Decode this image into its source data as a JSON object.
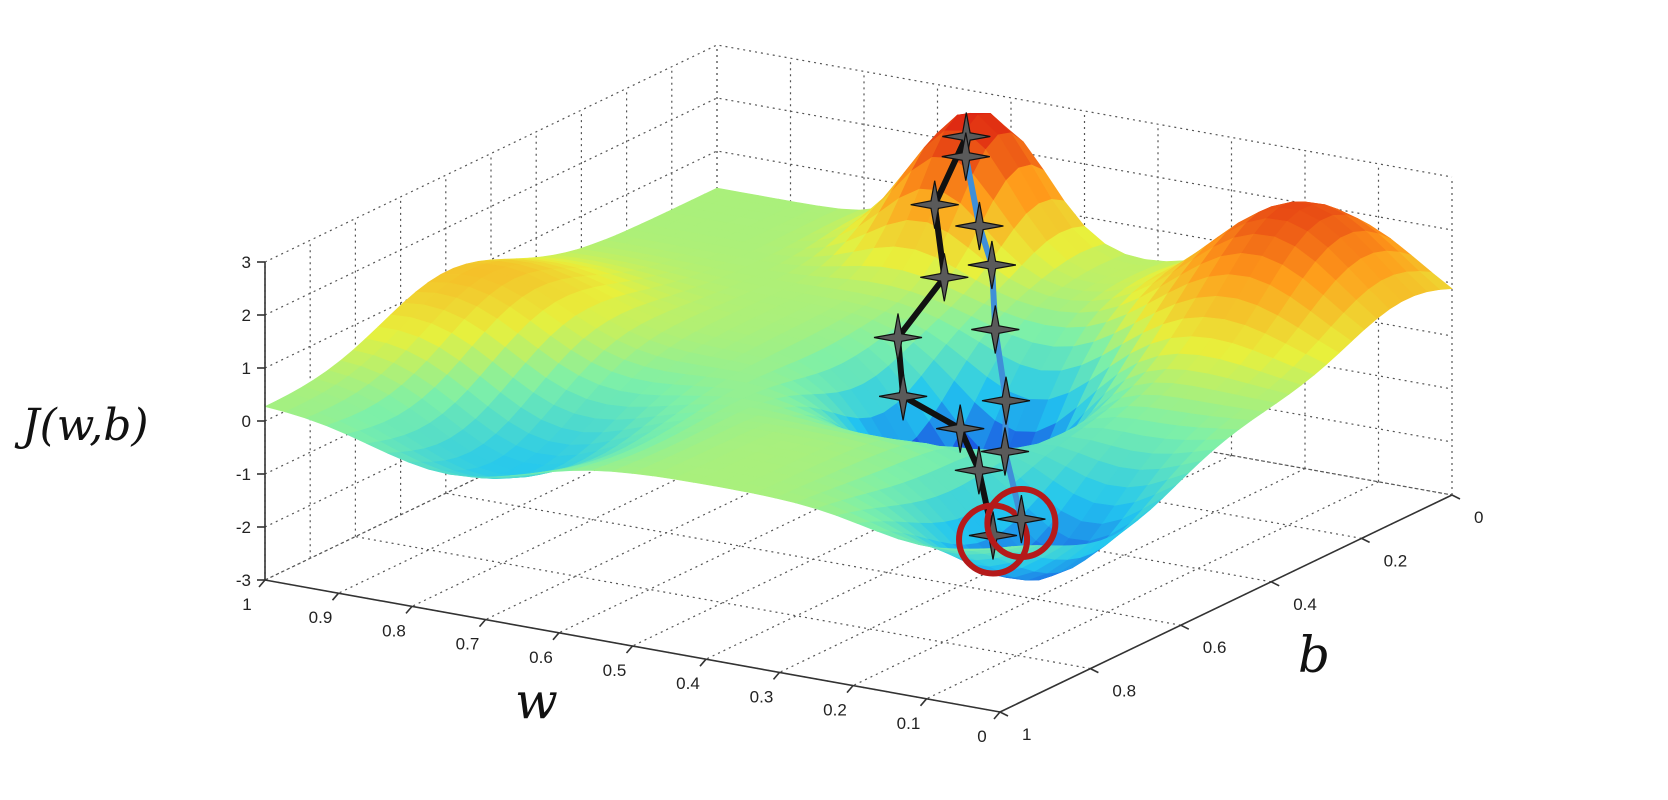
{
  "chart_data": {
    "type": "surface",
    "zlabel": "J(w,b)",
    "xlabel": "w",
    "ylabel": "b",
    "z_ticks": [
      "3",
      "2",
      "1",
      "0",
      "-1",
      "-2",
      "-3"
    ],
    "w_ticks": [
      "1",
      "0.9",
      "0.8",
      "0.7",
      "0.6",
      "0.5",
      "0.4",
      "0.3",
      "0.2",
      "0.1",
      "0"
    ],
    "b_ticks": [
      "0",
      "0.2",
      "0.4",
      "0.6",
      "0.8",
      "1"
    ],
    "zlim": [
      -3,
      3
    ],
    "wlim": [
      0,
      1
    ],
    "blim": [
      0,
      1
    ],
    "grid": true,
    "colormap": "jet",
    "paths": [
      {
        "color": "#111111",
        "points": [
          {
            "w": 0.63,
            "b": 0.05,
            "z": 2.4
          },
          {
            "w": 0.63,
            "b": 0.12,
            "z": 1.4
          },
          {
            "w": 0.58,
            "b": 0.18,
            "z": 0.4
          },
          {
            "w": 0.6,
            "b": 0.25,
            "z": -0.5
          },
          {
            "w": 0.55,
            "b": 0.32,
            "z": -1.2
          },
          {
            "w": 0.46,
            "b": 0.34,
            "z": -1.5
          },
          {
            "w": 0.41,
            "b": 0.38,
            "z": -2.0
          },
          {
            "w": 0.36,
            "b": 0.43,
            "z": -2.9
          }
        ],
        "end_circle": true
      },
      {
        "color": "#3f8fd8",
        "points": [
          {
            "w": 0.6,
            "b": 0.1,
            "z": 2.3
          },
          {
            "w": 0.52,
            "b": 0.2,
            "z": 1.6
          },
          {
            "w": 0.46,
            "b": 0.27,
            "z": 1.3
          },
          {
            "w": 0.4,
            "b": 0.36,
            "z": 0.6
          },
          {
            "w": 0.33,
            "b": 0.45,
            "z": -0.2
          },
          {
            "w": 0.27,
            "b": 0.55,
            "z": -0.6
          },
          {
            "w": 0.18,
            "b": 0.66,
            "z": -1.2
          }
        ],
        "end_circle": true
      }
    ]
  }
}
